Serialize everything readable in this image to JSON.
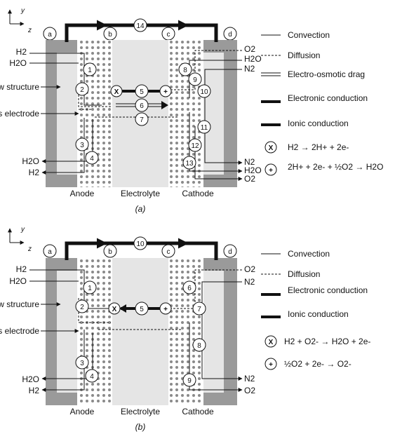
{
  "axes": {
    "y": "y",
    "z": "z"
  },
  "panels": [
    {
      "caption": "(a)",
      "regions": [
        "a",
        "b",
        "c",
        "d"
      ],
      "bottom_labels": {
        "anode": "Anode",
        "electrolyte": "Electrolyte",
        "cathode": "Cathode"
      },
      "left_labels": {
        "flow_structure": "Flow structure",
        "porous_electrode": "Porous electrode"
      },
      "inlet_left": [
        "H2",
        "H2O"
      ],
      "outlet_left": [
        "H2O",
        "H2"
      ],
      "inlet_right": [
        "O2",
        "H2O",
        "N2"
      ],
      "outlet_right": [
        "N2",
        "H2O",
        "O2"
      ],
      "numbers": [
        "1",
        "2",
        "3",
        "4",
        "5",
        "6",
        "7",
        "8",
        "9",
        "10",
        "11",
        "12",
        "13",
        "14"
      ],
      "legend": [
        {
          "label": "Convection",
          "style": "thin"
        },
        {
          "label": "Diffusion",
          "style": "dashed"
        },
        {
          "label": "Electro-osmotic drag",
          "style": "double"
        },
        {
          "label": "Electronic conduction",
          "style": "thick"
        },
        {
          "label": "Ionic conduction",
          "style": "thick"
        }
      ],
      "reactions": [
        {
          "symbol": "X",
          "text": "H2 → 2H+ + 2e-"
        },
        {
          "symbol": "+",
          "text": "2H+ + 2e- + ½O2 → H2O"
        }
      ]
    },
    {
      "caption": "(b)",
      "regions": [
        "a",
        "b",
        "c",
        "d"
      ],
      "bottom_labels": {
        "anode": "Anode",
        "electrolyte": "Electrolyte",
        "cathode": "Cathode"
      },
      "left_labels": {
        "flow_structure": "Flow structure",
        "porous_electrode": "Porous electrode"
      },
      "inlet_left": [
        "H2",
        "H2O"
      ],
      "outlet_left": [
        "H2O",
        "H2"
      ],
      "inlet_right": [
        "O2",
        "N2"
      ],
      "outlet_right": [
        "N2",
        "O2"
      ],
      "numbers": [
        "1",
        "2",
        "3",
        "4",
        "5",
        "6",
        "7",
        "8",
        "9",
        "10"
      ],
      "legend": [
        {
          "label": "Convection",
          "style": "thin"
        },
        {
          "label": "Diffusion",
          "style": "dashed"
        },
        {
          "label": "Electronic conduction",
          "style": "thick"
        },
        {
          "label": "Ionic conduction",
          "style": "thick"
        }
      ],
      "reactions": [
        {
          "symbol": "X",
          "text": "H2 + O2- → H2O + 2e-"
        },
        {
          "symbol": "+",
          "text": "½O2 + 2e- → O2-"
        }
      ]
    }
  ]
}
